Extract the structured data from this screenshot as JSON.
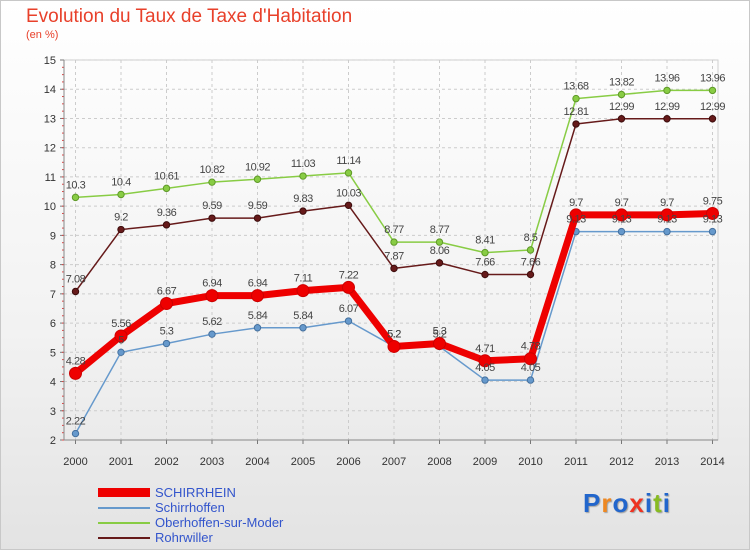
{
  "chart_data": {
    "type": "line",
    "title": "Evolution du Taux de Taxe d'Habitation",
    "subtitle": "(en %)",
    "x": [
      "2000",
      "2001",
      "2002",
      "2003",
      "2004",
      "2005",
      "2006",
      "2007",
      "2008",
      "2009",
      "2010",
      "2011",
      "2012",
      "2013",
      "2014"
    ],
    "ylim": [
      2,
      15
    ],
    "yticks": [
      2,
      3,
      4,
      5,
      6,
      7,
      8,
      9,
      10,
      11,
      12,
      13,
      14,
      15
    ],
    "grid": true,
    "legend_position": "bottom-left",
    "series": [
      {
        "name": "SCHIRRHEIN",
        "color": "#ee0000",
        "values": [
          4.28,
          5.56,
          6.67,
          6.94,
          6.94,
          7.11,
          7.22,
          5.2,
          5.3,
          4.71,
          4.78,
          9.7,
          9.7,
          9.7,
          9.75
        ],
        "labels": [
          "4.28",
          "5.56",
          "6.67",
          "6.94",
          "6.94",
          "7.11",
          "7.22",
          "5.2",
          "5.3",
          "4.71",
          "4.78",
          "9.7",
          "9.7",
          "9.7",
          "9.75"
        ]
      },
      {
        "name": "Schirrhoffen",
        "color": "#6699cc",
        "values": [
          2.22,
          5,
          5.3,
          5.62,
          5.84,
          5.84,
          6.07,
          5.2,
          5.2,
          4.05,
          4.05,
          9.13,
          9.13,
          9.13,
          9.13
        ],
        "labels": [
          "2.22",
          "5",
          "5.3",
          "5.62",
          "5.84",
          "5.84",
          "6.07",
          "5.2",
          "5.2",
          "4.05",
          "4.05",
          "9.13",
          "9.13",
          "9.13",
          "9.13"
        ]
      },
      {
        "name": "Oberhoffen-sur-Moder",
        "color": "#88cc44",
        "values": [
          10.3,
          10.4,
          10.61,
          10.82,
          10.92,
          11.03,
          11.14,
          8.77,
          8.77,
          8.41,
          8.5,
          13.68,
          13.82,
          13.96,
          13.96
        ],
        "labels": [
          "10.3",
          "10.4",
          "10.61",
          "10.82",
          "10.92",
          "11.03",
          "11.14",
          "8.77",
          "8.77",
          "8.41",
          "8.5",
          "13.68",
          "13.82",
          "13.96",
          "13.96"
        ]
      },
      {
        "name": "Rohrwiller",
        "color": "#661a1a",
        "values": [
          7.08,
          9.2,
          9.36,
          9.59,
          9.59,
          9.83,
          10.03,
          7.87,
          8.06,
          7.66,
          7.66,
          12.81,
          12.99,
          12.99,
          12.99
        ],
        "labels": [
          "7.08",
          "9.2",
          "9.36",
          "9.59",
          "9.59",
          "9.83",
          "10.03",
          "7.87",
          "8.06",
          "7.66",
          "7.66",
          "12.81",
          "12.99",
          "12.99",
          "12.99"
        ]
      }
    ]
  },
  "branding": {
    "logo_letters": [
      "P",
      "r",
      "o",
      "x",
      "i",
      "t",
      "i"
    ],
    "logo_colors": [
      "#2266cc",
      "#ee8822",
      "#2266cc",
      "#ee3322",
      "#2266cc",
      "#88bb22",
      "#2266cc"
    ]
  }
}
